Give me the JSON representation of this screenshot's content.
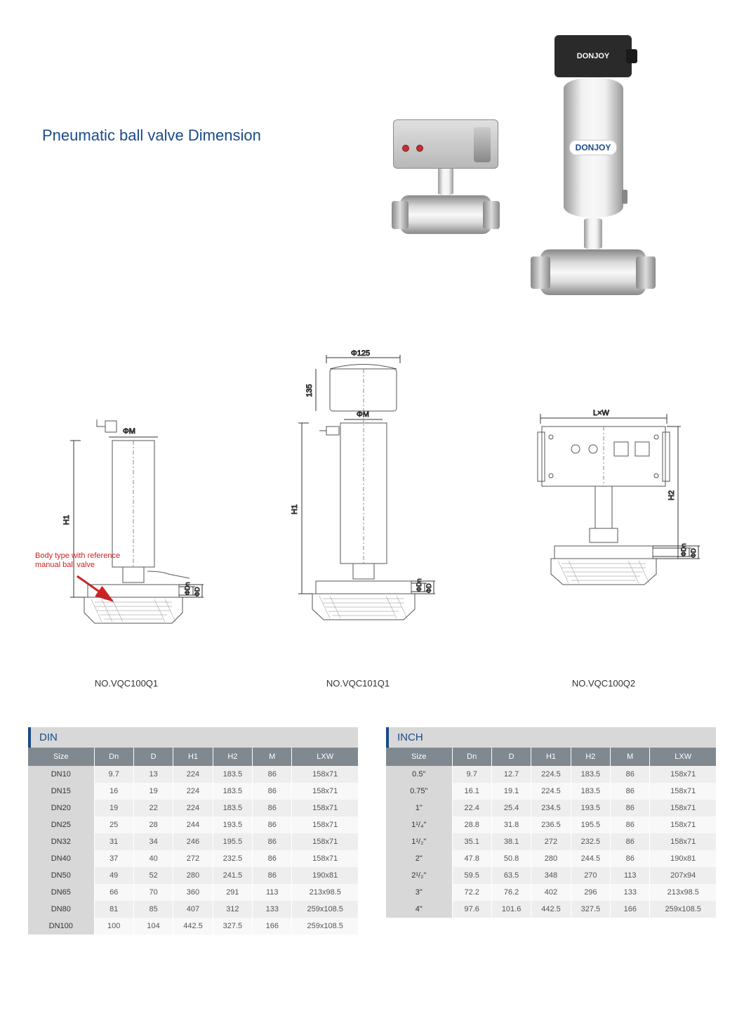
{
  "title": "Pneumatic ball valve Dimension",
  "brand": "DONJOY",
  "ref_note": "Body type with reference manual ball valve",
  "diagrams": {
    "d1": {
      "label": "NO.VQC100Q1",
      "dims": [
        "ΦM",
        "H1",
        "ΦDn",
        "ΦD"
      ]
    },
    "d2": {
      "label": "NO.VQC101Q1",
      "dims": [
        "Φ125",
        "135",
        "ΦM",
        "H1",
        "ΦDn",
        "ΦD"
      ]
    },
    "d3": {
      "label": "NO.VQC100Q2",
      "dims": [
        "L×W",
        "H2",
        "ΦDn",
        "ΦD"
      ]
    }
  },
  "din": {
    "title": "DIN",
    "columns": [
      "Size",
      "Dn",
      "D",
      "H1",
      "H2",
      "M",
      "LXW"
    ],
    "rows": [
      [
        "DN10",
        "9.7",
        "13",
        "224",
        "183.5",
        "86",
        "158x71"
      ],
      [
        "DN15",
        "16",
        "19",
        "224",
        "183.5",
        "86",
        "158x71"
      ],
      [
        "DN20",
        "19",
        "22",
        "224",
        "183.5",
        "86",
        "158x71"
      ],
      [
        "DN25",
        "25",
        "28",
        "244",
        "193.5",
        "86",
        "158x71"
      ],
      [
        "DN32",
        "31",
        "34",
        "246",
        "195.5",
        "86",
        "158x71"
      ],
      [
        "DN40",
        "37",
        "40",
        "272",
        "232.5",
        "86",
        "158x71"
      ],
      [
        "DN50",
        "49",
        "52",
        "280",
        "241.5",
        "86",
        "190x81"
      ],
      [
        "DN65",
        "66",
        "70",
        "360",
        "291",
        "113",
        "213x98.5"
      ],
      [
        "DN80",
        "81",
        "85",
        "407",
        "312",
        "133",
        "259x108.5"
      ],
      [
        "DN100",
        "100",
        "104",
        "442.5",
        "327.5",
        "166",
        "259x108.5"
      ]
    ]
  },
  "inch": {
    "title": "INCH",
    "columns": [
      "Size",
      "Dn",
      "D",
      "H1",
      "H2",
      "M",
      "LXW"
    ],
    "rows": [
      [
        "0.5\"",
        "9.7",
        "12.7",
        "224.5",
        "183.5",
        "86",
        "158x71"
      ],
      [
        "0.75\"",
        "16.1",
        "19.1",
        "224.5",
        "183.5",
        "86",
        "158x71"
      ],
      [
        "1\"",
        "22.4",
        "25.4",
        "234.5",
        "193.5",
        "86",
        "158x71"
      ],
      [
        "1¹/₄\"",
        "28.8",
        "31.8",
        "236.5",
        "195.5",
        "86",
        "158x71"
      ],
      [
        "1¹/₂\"",
        "35.1",
        "38.1",
        "272",
        "232.5",
        "86",
        "158x71"
      ],
      [
        "2\"",
        "47.8",
        "50.8",
        "280",
        "244.5",
        "86",
        "190x81"
      ],
      [
        "2¹/₂\"",
        "59.5",
        "63.5",
        "348",
        "270",
        "113",
        "207x94"
      ],
      [
        "3\"",
        "72.2",
        "76.2",
        "402",
        "296",
        "133",
        "213x98.5"
      ],
      [
        "4\"",
        "97.6",
        "101.6",
        "442.5",
        "327.5",
        "166",
        "259x108.5"
      ]
    ]
  },
  "colors": {
    "title": "#1a4a8a",
    "header_bg": "#808890",
    "row_odd": "#eeeeee",
    "row_even": "#f8f8f8",
    "size_col": "#d8d8d8",
    "ref_note": "#d02020"
  }
}
